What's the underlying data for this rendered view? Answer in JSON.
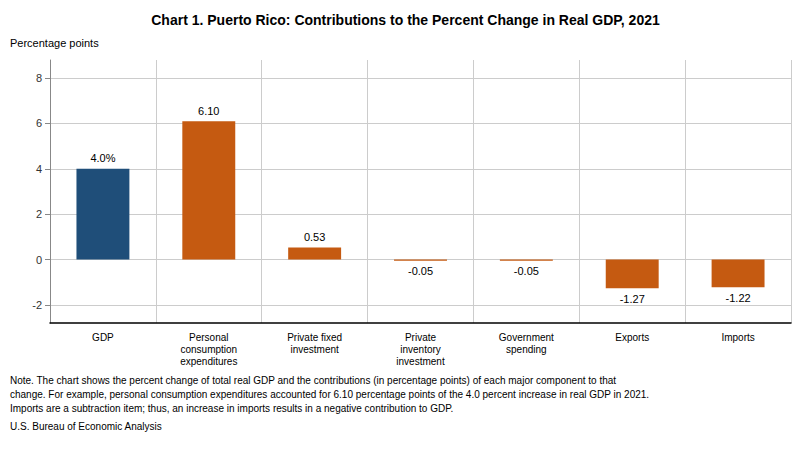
{
  "chart_data": {
    "type": "bar",
    "title": "Chart 1. Puerto Rico: Contributions to the Percent Change in Real GDP, 2021",
    "ylabel": "Percentage points",
    "categories": [
      "GDP",
      "Personal\nconsumption\nexpenditures",
      "Private fixed\ninvestment",
      "Private\ninventory\ninvestment",
      "Government\nspending",
      "Exports",
      "Imports"
    ],
    "values": [
      4.0,
      6.1,
      0.53,
      -0.05,
      -0.05,
      -1.27,
      -1.22
    ],
    "value_labels": [
      "4.0%",
      "6.10",
      "0.53",
      "-0.05",
      "-0.05",
      "-1.27",
      "-1.22"
    ],
    "data_labels": true,
    "colors": [
      "#1f4e79",
      "#c55a11",
      "#c55a11",
      "#c55a11",
      "#c55a11",
      "#c55a11",
      "#c55a11"
    ],
    "ylim": [
      -2.8,
      8.8
    ],
    "yticks": [
      -2,
      0,
      2,
      4,
      6,
      8
    ],
    "grid": true,
    "annotations": [
      "Note. The chart shows the percent change of total real GDP and the contributions (in percentage points) of each major component to that",
      "change. For example, personal consumption expenditures accounted for 6.10 percentage points of the 4.0 percent increase in real GDP in 2021.",
      "Imports are a subtraction item; thus, an increase in imports results in a negative contribution to GDP.",
      "U.S. Bureau of Economic Analysis"
    ]
  }
}
